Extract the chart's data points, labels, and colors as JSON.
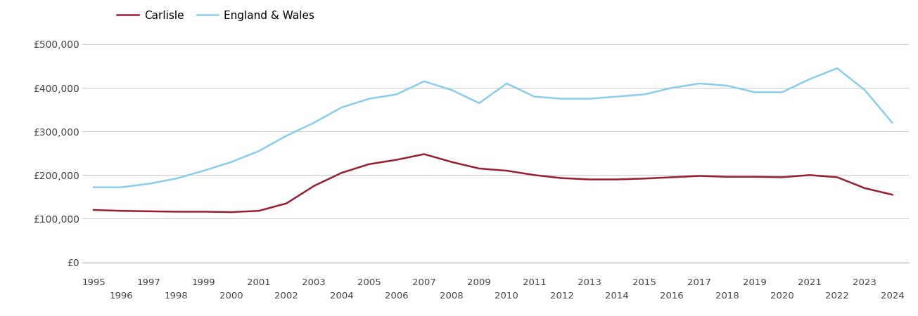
{
  "years": [
    1995,
    1996,
    1997,
    1998,
    1999,
    2000,
    2001,
    2002,
    2003,
    2004,
    2005,
    2006,
    2007,
    2008,
    2009,
    2010,
    2011,
    2012,
    2013,
    2014,
    2015,
    2016,
    2017,
    2018,
    2019,
    2020,
    2021,
    2022,
    2023,
    2024
  ],
  "carlisle": [
    120000,
    118000,
    117000,
    116000,
    116000,
    115000,
    118000,
    135000,
    175000,
    205000,
    225000,
    235000,
    248000,
    230000,
    215000,
    210000,
    200000,
    193000,
    190000,
    190000,
    192000,
    195000,
    198000,
    196000,
    196000,
    195000,
    200000,
    195000,
    170000,
    155000
  ],
  "england_wales": [
    172000,
    172000,
    180000,
    192000,
    210000,
    230000,
    255000,
    290000,
    320000,
    355000,
    375000,
    385000,
    415000,
    395000,
    365000,
    410000,
    380000,
    375000,
    375000,
    380000,
    385000,
    400000,
    410000,
    405000,
    390000,
    390000,
    420000,
    445000,
    395000,
    320000
  ],
  "carlisle_color": "#9b1b30",
  "england_wales_color": "#87ceeb",
  "background_color": "#ffffff",
  "grid_color": "#cccccc",
  "ylim": [
    0,
    500000
  ],
  "yticks": [
    0,
    100000,
    200000,
    300000,
    400000,
    500000
  ],
  "ytick_labels": [
    "£0",
    "£100,000",
    "£200,000",
    "£300,000",
    "£400,000",
    "£500,000"
  ],
  "legend_carlisle": "Carlisle",
  "legend_england_wales": "England & Wales",
  "line_width": 1.8,
  "xlim_left": 1994.6,
  "xlim_right": 2024.6
}
